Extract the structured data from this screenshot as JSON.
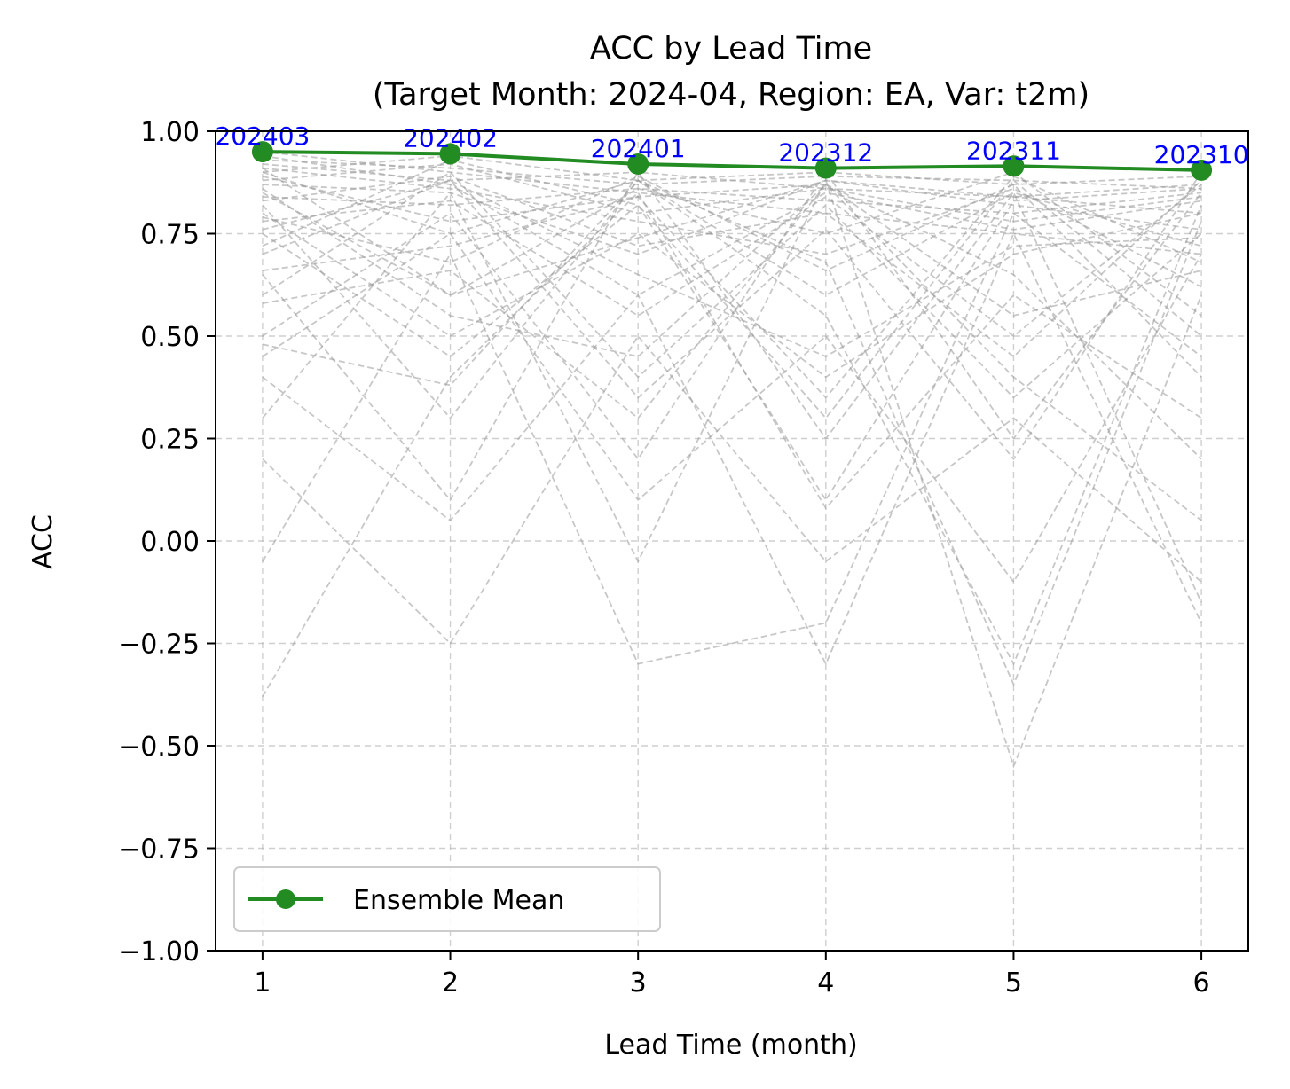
{
  "chart_data": {
    "type": "line",
    "title": "ACC by Lead Time",
    "subtitle": "(Target Month: 2024-04, Region: EA, Var: t2m)",
    "xlabel": "Lead Time (month)",
    "ylabel": "ACC",
    "x": [
      1,
      2,
      3,
      4,
      5,
      6
    ],
    "xlim": [
      0.75,
      6.25
    ],
    "ylim": [
      -1.0,
      1.0
    ],
    "x_ticks": [
      "1",
      "2",
      "3",
      "4",
      "5",
      "6"
    ],
    "y_ticks": [
      "1.00",
      "0.75",
      "0.50",
      "0.25",
      "0.00",
      "−0.25",
      "−0.50",
      "−0.75",
      "−1.00"
    ],
    "grid": true,
    "legend_position": "lower-left",
    "series": [
      {
        "name": "Ensemble Mean",
        "color": "#228B22",
        "marker": "circle",
        "values": [
          0.95,
          0.945,
          0.92,
          0.91,
          0.915,
          0.905
        ],
        "point_labels": [
          "202403",
          "202402",
          "202401",
          "202312",
          "202311",
          "202310"
        ],
        "point_label_color": "#0000FF"
      }
    ],
    "member_series": {
      "color": "#999999",
      "style": "dashed",
      "values": [
        [
          0.95,
          0.9,
          0.85,
          0.8,
          0.75,
          0.7
        ],
        [
          0.92,
          0.88,
          0.9,
          0.86,
          0.84,
          0.8
        ],
        [
          0.9,
          0.75,
          0.88,
          0.6,
          0.85,
          0.72
        ],
        [
          0.88,
          0.92,
          0.8,
          0.86,
          0.78,
          0.84
        ],
        [
          0.87,
          0.85,
          0.7,
          0.88,
          0.82,
          0.76
        ],
        [
          0.85,
          0.6,
          0.86,
          0.75,
          0.9,
          0.55
        ],
        [
          0.93,
          0.91,
          0.87,
          0.89,
          0.88,
          0.86
        ],
        [
          0.8,
          0.5,
          0.75,
          0.4,
          0.7,
          0.8
        ],
        [
          0.78,
          0.83,
          0.55,
          0.84,
          0.5,
          0.87
        ],
        [
          0.91,
          0.86,
          0.78,
          0.7,
          0.86,
          0.62
        ],
        [
          0.75,
          0.45,
          0.82,
          0.3,
          0.88,
          0.5
        ],
        [
          0.6,
          0.9,
          0.4,
          0.82,
          0.35,
          0.75
        ],
        [
          0.5,
          0.8,
          0.2,
          0.9,
          0.25,
          0.85
        ],
        [
          0.45,
          0.75,
          0.1,
          0.5,
          -0.1,
          0.7
        ],
        [
          0.4,
          0.05,
          0.6,
          -0.3,
          0.75,
          -0.2
        ],
        [
          0.3,
          0.85,
          -0.05,
          0.88,
          -0.55,
          0.6
        ],
        [
          0.2,
          -0.25,
          0.5,
          -0.05,
          0.3,
          -0.1
        ],
        [
          -0.05,
          0.7,
          -0.3,
          -0.2,
          0.8,
          0.45
        ],
        [
          -0.38,
          0.4,
          0.85,
          0.08,
          0.6,
          0.3
        ],
        [
          0.65,
          0.1,
          0.9,
          0.25,
          0.85,
          -0.15
        ],
        [
          0.7,
          0.88,
          0.35,
          0.76,
          0.2,
          0.9
        ],
        [
          0.82,
          0.3,
          0.88,
          0.55,
          -0.3,
          0.82
        ],
        [
          0.86,
          0.55,
          0.45,
          0.87,
          0.65,
          0.2
        ],
        [
          0.89,
          0.78,
          0.84,
          0.35,
          0.89,
          0.68
        ],
        [
          0.83,
          0.89,
          0.72,
          0.8,
          0.45,
          0.88
        ],
        [
          0.79,
          0.68,
          0.89,
          0.66,
          0.87,
          0.4
        ],
        [
          0.94,
          0.87,
          0.6,
          0.85,
          0.76,
          0.83
        ],
        [
          0.72,
          0.93,
          0.82,
          0.1,
          0.83,
          0.86
        ],
        [
          0.58,
          0.66,
          0.3,
          0.87,
          0.4,
          0.05
        ],
        [
          0.48,
          0.38,
          0.88,
          0.68,
          -0.35,
          0.78
        ],
        [
          0.9,
          0.94,
          0.88,
          0.9,
          0.87,
          0.89
        ],
        [
          0.84,
          0.82,
          0.86,
          0.83,
          0.8,
          0.85
        ],
        [
          0.76,
          0.88,
          0.65,
          0.45,
          0.72,
          0.74
        ],
        [
          0.66,
          0.72,
          0.84,
          0.87,
          0.55,
          0.66
        ],
        [
          0.91,
          0.6,
          0.74,
          0.88,
          0.84,
          0.87
        ]
      ]
    }
  }
}
